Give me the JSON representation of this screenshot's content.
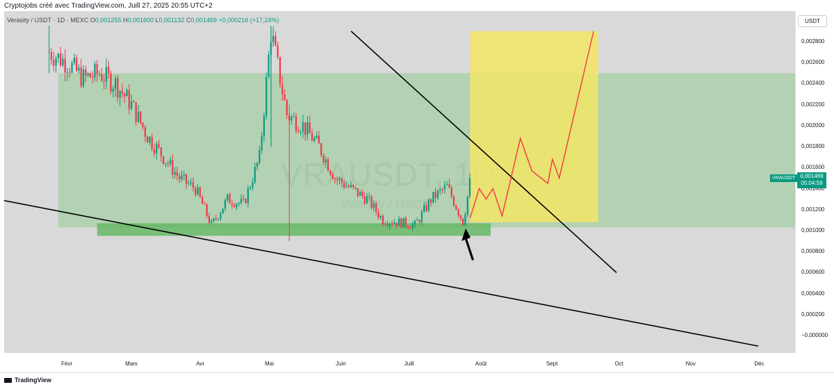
{
  "header": {
    "attribution": "Cryptojobs créé avec TradingView.com, Juill 27, 2025 20:55 UTC+2"
  },
  "legend": {
    "symbol": "Verasity / USDT · 1D · MEXC",
    "o_label": "O",
    "o": "0,001255",
    "h_label": "H",
    "h": "0,001600",
    "l_label": "L",
    "l": "0,001132",
    "c_label": "C",
    "c": "0,001469",
    "change": "+0,000216 (+17,24%)"
  },
  "watermark": {
    "ticker": "VRAUSDT, 1D",
    "name": "Verasity / USDT"
  },
  "price_axis": {
    "currency": "USDT",
    "symbol_tag": "VRAUSDT",
    "last_price": "0,001469",
    "countdown": "05:04:59"
  },
  "footer": {
    "brand": "TradingView"
  },
  "colors": {
    "up": "#089981",
    "down": "#f23645",
    "zone": "#7fc67f",
    "target": "#f5e663",
    "trendline": "#000000"
  },
  "chart_data": {
    "type": "candlestick",
    "ylim": [
      -0.0001,
      0.00295
    ],
    "yticks": [
      "0,002800",
      "0,002600",
      "0,002400",
      "0,002200",
      "0,002000",
      "0,001800",
      "0,001600",
      "0,001400",
      "0,001200",
      "0,001000",
      "0,000800",
      "0,000600",
      "0,000400",
      "0,000200",
      "−0,000000"
    ],
    "ytick_values": [
      0.0028,
      0.0026,
      0.0024,
      0.0022,
      0.002,
      0.0018,
      0.0016,
      0.0014,
      0.0012,
      0.001,
      0.0008,
      0.0006,
      0.0004,
      0.0002,
      0
    ],
    "xticks": [
      {
        "label": "Févr",
        "date": "2025-02-01"
      },
      {
        "label": "Mars",
        "date": "2025-03-01"
      },
      {
        "label": "Avr",
        "date": "2025-04-01"
      },
      {
        "label": "Mai",
        "date": "2025-05-01"
      },
      {
        "label": "Juin",
        "date": "2025-06-01"
      },
      {
        "label": "Juill",
        "date": "2025-07-01"
      },
      {
        "label": "Août",
        "date": "2025-08-01"
      },
      {
        "label": "Sept",
        "date": "2025-09-01"
      },
      {
        "label": "Oct",
        "date": "2025-10-01"
      },
      {
        "label": "Nov",
        "date": "2025-11-01"
      },
      {
        "label": "Déc",
        "date": "2025-12-01"
      }
    ],
    "candles": [
      {
        "date": "2025-01-24",
        "close": 0.0027
      },
      {
        "date": "2025-02-01",
        "close": 0.0026
      },
      {
        "date": "2025-02-08",
        "close": 0.00245
      },
      {
        "date": "2025-02-15",
        "close": 0.0025
      },
      {
        "date": "2025-02-22",
        "close": 0.0024
      },
      {
        "date": "2025-03-01",
        "close": 0.0022
      },
      {
        "date": "2025-03-08",
        "close": 0.0019
      },
      {
        "date": "2025-03-15",
        "close": 0.0017
      },
      {
        "date": "2025-03-22",
        "close": 0.0015
      },
      {
        "date": "2025-03-29",
        "close": 0.0014
      },
      {
        "date": "2025-04-05",
        "close": 0.00105
      },
      {
        "date": "2025-04-12",
        "close": 0.0013
      },
      {
        "date": "2025-04-19",
        "close": 0.00125
      },
      {
        "date": "2025-04-26",
        "close": 0.0017
      },
      {
        "date": "2025-05-01",
        "close": 0.0029
      },
      {
        "date": "2025-05-08",
        "close": 0.0021
      },
      {
        "date": "2025-05-15",
        "close": 0.002
      },
      {
        "date": "2025-05-22",
        "close": 0.0018
      },
      {
        "date": "2025-05-29",
        "close": 0.0015
      },
      {
        "date": "2025-06-05",
        "close": 0.0014
      },
      {
        "date": "2025-06-12",
        "close": 0.0013
      },
      {
        "date": "2025-06-19",
        "close": 0.0011
      },
      {
        "date": "2025-06-26",
        "close": 0.00108
      },
      {
        "date": "2025-07-03",
        "close": 0.00105
      },
      {
        "date": "2025-07-10",
        "close": 0.0013
      },
      {
        "date": "2025-07-17",
        "close": 0.00142
      },
      {
        "date": "2025-07-24",
        "close": 0.00108
      },
      {
        "date": "2025-07-27",
        "close": 0.001469
      }
    ],
    "support_zone": {
      "from": "2025-01-28",
      "to": "2025-12-31",
      "low": 0.00103,
      "high": 0.0025
    },
    "demand_zone": {
      "from": "2025-02-14",
      "to": "2025-08-05",
      "low": 0.00095,
      "high": 0.00107
    },
    "target_zone": {
      "from": "2025-07-27",
      "to": "2025-09-21",
      "low": 0.00108,
      "high": 0.0029
    },
    "trendlines": [
      {
        "from": {
          "date": "2025-01-01",
          "value": 0.0013
        },
        "to": {
          "date": "2025-11-30",
          "value": -0.0001
        }
      },
      {
        "from": {
          "date": "2025-06-05",
          "value": 0.0029
        },
        "to": {
          "date": "2025-09-29",
          "value": 0.0006
        }
      }
    ],
    "projection": [
      {
        "date": "2025-07-27",
        "value": 0.00112
      },
      {
        "date": "2025-07-31",
        "value": 0.0014
      },
      {
        "date": "2025-08-03",
        "value": 0.0013
      },
      {
        "date": "2025-08-06",
        "value": 0.0014
      },
      {
        "date": "2025-08-10",
        "value": 0.00114
      },
      {
        "date": "2025-08-18",
        "value": 0.00188
      },
      {
        "date": "2025-08-23",
        "value": 0.00157
      },
      {
        "date": "2025-08-30",
        "value": 0.00145
      },
      {
        "date": "2025-09-01",
        "value": 0.00168
      },
      {
        "date": "2025-09-04",
        "value": 0.0015
      },
      {
        "date": "2025-09-19",
        "value": 0.0029
      }
    ],
    "arrow_at": {
      "date": "2025-07-26",
      "value": 0.00102
    }
  }
}
